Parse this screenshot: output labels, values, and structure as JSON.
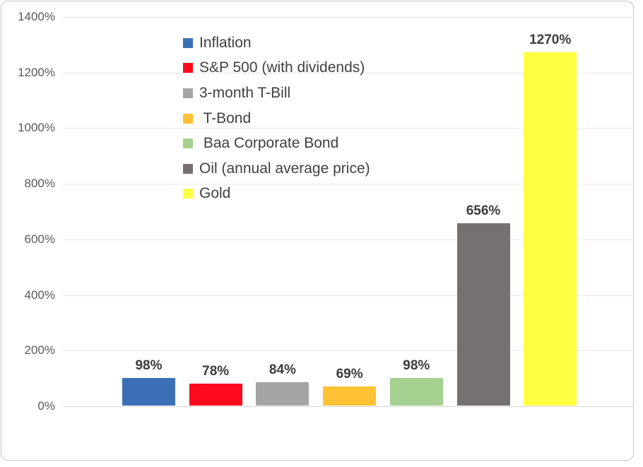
{
  "chart_data": {
    "type": "bar",
    "title": "",
    "xlabel": "",
    "ylabel": "",
    "categories": [
      "Inflation",
      "S&P 500 (with dividends)",
      "3-month T-Bill",
      "T-Bond",
      "Baa Corporate Bond",
      "Oil (annual average price)",
      "Gold"
    ],
    "values": [
      98,
      78,
      84,
      69,
      98,
      656,
      1270
    ],
    "bar_labels": [
      "98%",
      "78%",
      "84%",
      "69%",
      "98%",
      "656%",
      "1270%"
    ],
    "colors": [
      "#3b70b7",
      "#fe0a1e",
      "#a5a5a5",
      "#ffc234",
      "#a6d08f",
      "#767171",
      "#ffff42"
    ],
    "ylim": [
      0,
      1400
    ],
    "yticks": [
      0,
      200,
      400,
      600,
      800,
      1000,
      1200,
      1400
    ],
    "ytick_labels": [
      "0%",
      "200%",
      "400%",
      "600%",
      "800%",
      "1000%",
      "1200%",
      "1400%"
    ],
    "grid": true,
    "legend_position": "top-left-inside",
    "legend": [
      {
        "label": "Inflation",
        "color": "#3b70b7"
      },
      {
        "label": "S&P 500 (with dividends)",
        "color": "#fe0a1e"
      },
      {
        "label": "3-month T-Bill",
        "color": "#a5a5a5"
      },
      {
        "label": " T-Bond",
        "color": "#ffc234"
      },
      {
        "label": " Baa Corporate Bond",
        "color": "#a6d08f"
      },
      {
        "label": "Oil (annual average price)",
        "color": "#767171"
      },
      {
        "label": "Gold",
        "color": "#ffff42"
      }
    ]
  },
  "style": {
    "gridline_color": "#e7e7e7",
    "axis_line_color": "#d6d6d6",
    "tick_label_color": "#595959",
    "legend_text_color": "#404040",
    "data_label_color": "#3b3b3b",
    "frame_border_color": "#c7c7c7",
    "background": "#ffffff"
  }
}
